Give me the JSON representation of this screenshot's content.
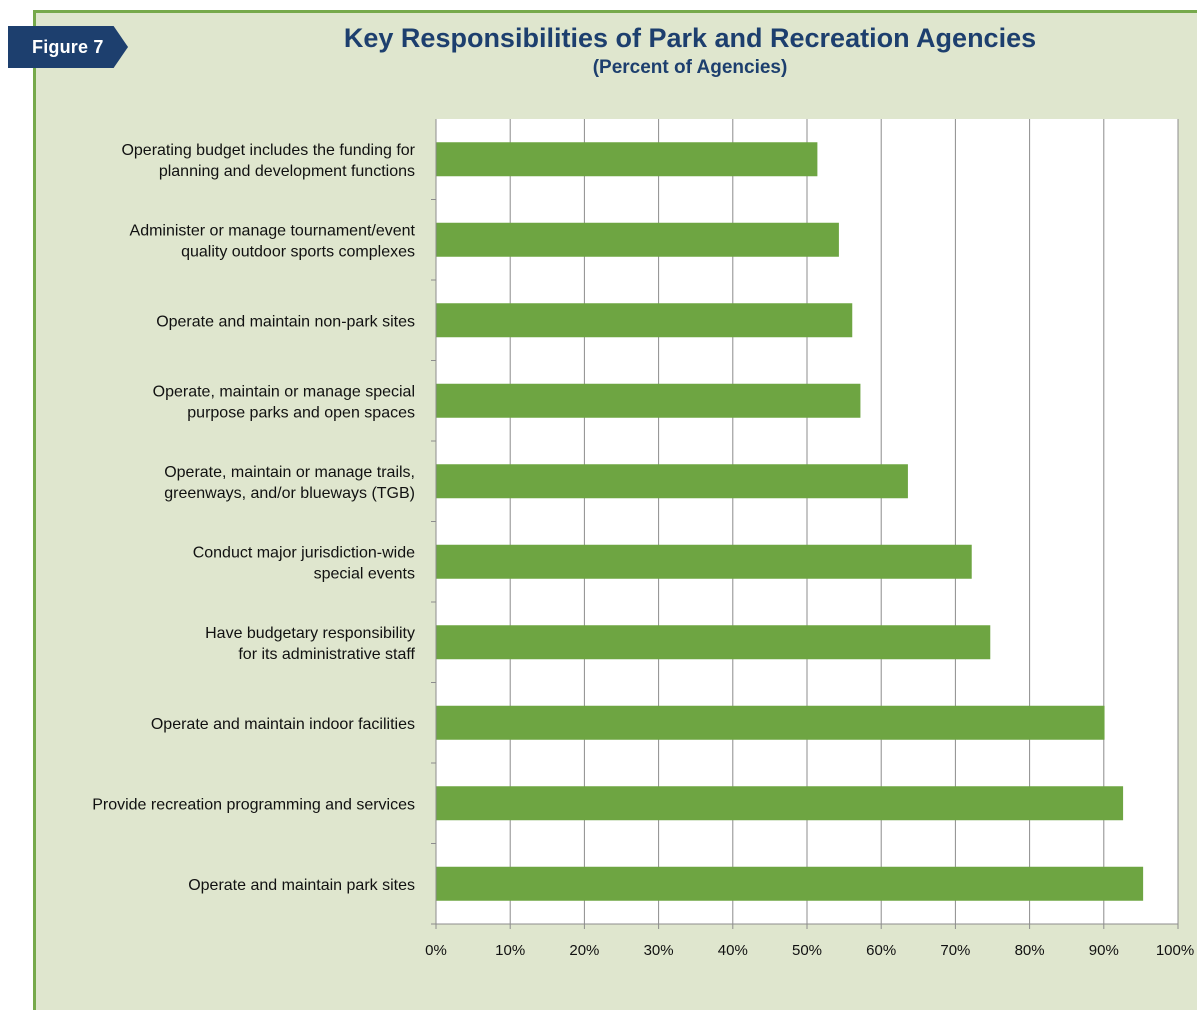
{
  "figure_tab": "Figure 7",
  "colors": {
    "bar": "#6ea542",
    "panel": "#dfe6ce",
    "title": "#1d3f6e",
    "border": "#76a94b"
  },
  "chart_data": {
    "type": "bar",
    "orientation": "horizontal",
    "title": "Key Responsibilities of Park and Recreation Agencies",
    "subtitle": "(Percent of Agencies)",
    "xlabel": "",
    "ylabel": "",
    "xlim": [
      0,
      100
    ],
    "grid": true,
    "categories": [
      [
        "Operating budget includes the funding for",
        "planning and development functions"
      ],
      [
        "Administer or manage tournament/event",
        "quality outdoor sports complexes"
      ],
      [
        "Operate and maintain non-park sites"
      ],
      [
        "Operate, maintain or manage special",
        "purpose parks and open spaces"
      ],
      [
        "Operate, maintain or manage trails,",
        "greenways, and/or blueways (TGB)"
      ],
      [
        "Conduct major jurisdiction-wide",
        "special events"
      ],
      [
        "Have budgetary responsibility",
        "for its administrative staff"
      ],
      [
        "Operate and maintain indoor facilities"
      ],
      [
        "Provide recreation programming and services"
      ],
      [
        "Operate and maintain park sites"
      ]
    ],
    "values": [
      51.4,
      54.3,
      56.1,
      57.2,
      63.6,
      72.2,
      74.7,
      90.1,
      92.6,
      95.3
    ],
    "ticks": [
      0,
      10,
      20,
      30,
      40,
      50,
      60,
      70,
      80,
      90,
      100
    ],
    "tick_labels": [
      "0%",
      "10%",
      "20%",
      "30%",
      "40%",
      "50%",
      "60%",
      "70%",
      "80%",
      "90%",
      "100%"
    ]
  }
}
